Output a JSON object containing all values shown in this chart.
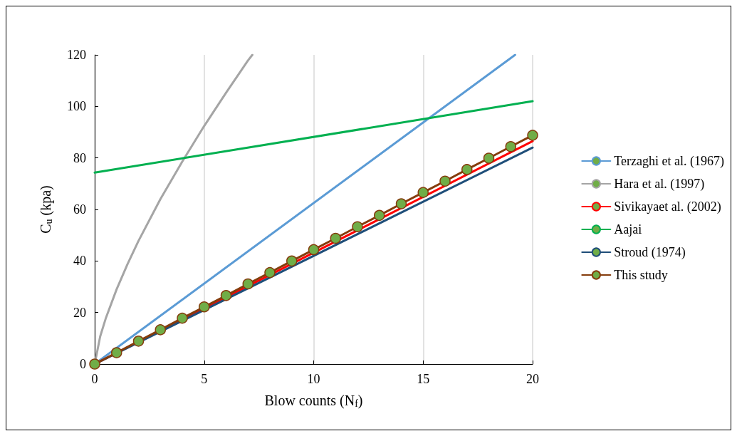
{
  "chart_data": {
    "type": "line",
    "xlabel": "Blow counts (N$_{f}$)",
    "ylabel": "C$_{u}$ (kpa)",
    "xlim": [
      0,
      20
    ],
    "xticks": [
      0,
      5,
      10,
      15,
      20
    ],
    "ylim": [
      0,
      120
    ],
    "yticks": [
      0,
      20,
      40,
      60,
      80,
      100,
      120
    ],
    "grid": "x",
    "legend": "right",
    "series": [
      {
        "name": "Terzaghi et al. (1967)",
        "color": "#5b9bd5",
        "x": [
          0,
          19.2
        ],
        "values": [
          0,
          120
        ]
      },
      {
        "name": "Hara et al. (1997)",
        "color": "#a5a5a5",
        "x": [
          0,
          0.25,
          0.5,
          1,
          1.5,
          2,
          3,
          4,
          5,
          6,
          7,
          7.2
        ],
        "values": [
          0,
          10.7,
          17.6,
          29,
          38.8,
          47.8,
          64,
          78.6,
          92.4,
          105.3,
          117.8,
          120
        ]
      },
      {
        "name": "Sivikayaet al. (2002)",
        "color": "#ff0000",
        "x": [
          0,
          20
        ],
        "values": [
          0,
          86.5
        ]
      },
      {
        "name": "Aajai",
        "color": "#00b050",
        "x": [
          0,
          20
        ],
        "values": [
          74.3,
          102
        ]
      },
      {
        "name": "Stroud (1974)",
        "color": "#1f4e79",
        "x": [
          0,
          20
        ],
        "values": [
          0,
          84
        ]
      },
      {
        "name": "This study",
        "color": "#843c0c",
        "marker": "circle",
        "x": [
          0,
          1,
          2,
          3,
          4,
          5,
          6,
          7,
          8,
          9,
          10,
          11,
          12,
          13,
          14,
          15,
          16,
          17,
          18,
          19,
          20
        ],
        "values": [
          0,
          4.4,
          8.9,
          13.3,
          17.8,
          22.2,
          26.6,
          31.1,
          35.5,
          40,
          44.4,
          48.8,
          53.3,
          57.7,
          62.2,
          66.6,
          71,
          75.5,
          79.9,
          84.4,
          88.8
        ]
      }
    ]
  }
}
